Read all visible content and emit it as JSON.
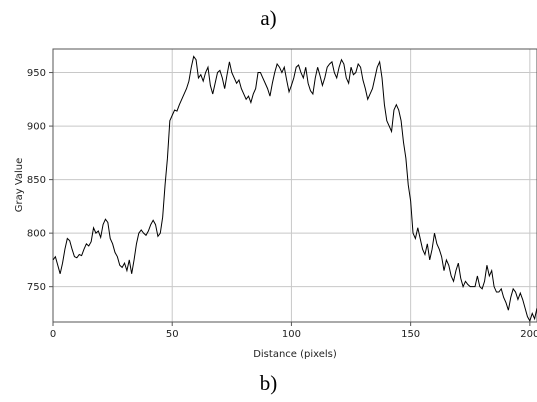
{
  "captions": {
    "top": "a)",
    "bottom": "b)"
  },
  "chart_data": {
    "type": "line",
    "title": "",
    "xlabel": "Distance (pixels)",
    "ylabel": "Gray Value",
    "xlim": [
      0,
      203
    ],
    "ylim": [
      717,
      972
    ],
    "xticks": [
      0,
      50,
      100,
      150,
      200
    ],
    "yticks": [
      750,
      800,
      850,
      900,
      950
    ],
    "grid": true,
    "line_color": "#000000",
    "grid_color": "#c8c8c8",
    "series": [
      {
        "x": [
          0,
          1,
          2,
          3,
          4,
          5,
          6,
          7,
          8,
          9,
          10,
          11,
          12,
          13,
          14,
          15,
          16,
          17,
          18,
          19,
          20,
          21,
          22,
          23,
          24,
          25,
          26,
          27,
          28,
          29,
          30,
          31,
          32,
          33,
          34,
          35,
          36,
          37,
          38,
          39,
          40,
          41,
          42,
          43,
          44,
          45,
          46,
          47,
          48,
          49,
          50,
          51,
          52,
          53,
          54,
          55,
          56,
          57,
          58,
          59,
          60,
          61,
          62,
          63,
          64,
          65,
          66,
          67,
          68,
          69,
          70,
          71,
          72,
          73,
          74,
          75,
          76,
          77,
          78,
          79,
          80,
          81,
          82,
          83,
          84,
          85,
          86,
          87,
          88,
          89,
          90,
          91,
          92,
          93,
          94,
          95,
          96,
          97,
          98,
          99,
          100,
          101,
          102,
          103,
          104,
          105,
          106,
          107,
          108,
          109,
          110,
          111,
          112,
          113,
          114,
          115,
          116,
          117,
          118,
          119,
          120,
          121,
          122,
          123,
          124,
          125,
          126,
          127,
          128,
          129,
          130,
          131,
          132,
          133,
          134,
          135,
          136,
          137,
          138,
          139,
          140,
          141,
          142,
          143,
          144,
          145,
          146,
          147,
          148,
          149,
          150,
          151,
          152,
          153,
          154,
          155,
          156,
          157,
          158,
          159,
          160,
          161,
          162,
          163,
          164,
          165,
          166,
          167,
          168,
          169,
          170,
          171,
          172,
          173,
          174,
          175,
          176,
          177,
          178,
          179,
          180,
          181,
          182,
          183,
          184,
          185,
          186,
          187,
          188,
          189,
          190,
          191,
          192,
          193,
          194,
          195,
          196,
          197,
          198,
          199,
          200,
          201,
          202,
          203
        ],
        "y": [
          775,
          778,
          770,
          762,
          772,
          785,
          795,
          793,
          785,
          778,
          777,
          780,
          779,
          785,
          790,
          788,
          792,
          805,
          800,
          802,
          796,
          808,
          813,
          810,
          795,
          790,
          782,
          778,
          770,
          768,
          772,
          765,
          775,
          762,
          775,
          790,
          800,
          803,
          800,
          798,
          802,
          808,
          812,
          808,
          797,
          800,
          815,
          845,
          870,
          905,
          910,
          915,
          914,
          920,
          925,
          930,
          935,
          942,
          955,
          965,
          962,
          945,
          948,
          942,
          950,
          955,
          938,
          930,
          940,
          950,
          952,
          945,
          935,
          948,
          960,
          950,
          945,
          940,
          943,
          935,
          930,
          925,
          928,
          922,
          930,
          935,
          950,
          950,
          945,
          940,
          935,
          928,
          940,
          950,
          958,
          955,
          950,
          955,
          943,
          932,
          938,
          945,
          955,
          957,
          950,
          945,
          955,
          940,
          933,
          930,
          945,
          955,
          947,
          938,
          945,
          955,
          958,
          960,
          950,
          945,
          955,
          962,
          958,
          945,
          940,
          955,
          948,
          950,
          958,
          955,
          943,
          935,
          925,
          930,
          935,
          945,
          955,
          960,
          945,
          920,
          905,
          900,
          895,
          915,
          920,
          915,
          905,
          885,
          870,
          845,
          830,
          800,
          795,
          805,
          795,
          785,
          780,
          790,
          775,
          785,
          800,
          790,
          785,
          778,
          765,
          775,
          770,
          760,
          755,
          765,
          772,
          758,
          750,
          755,
          752,
          750,
          750,
          750,
          760,
          750,
          748,
          755,
          770,
          760,
          765,
          750,
          745,
          745,
          748,
          740,
          735,
          728,
          740,
          748,
          745,
          738,
          744,
          738,
          730,
          722,
          718,
          725,
          720,
          730
        ]
      }
    ]
  }
}
